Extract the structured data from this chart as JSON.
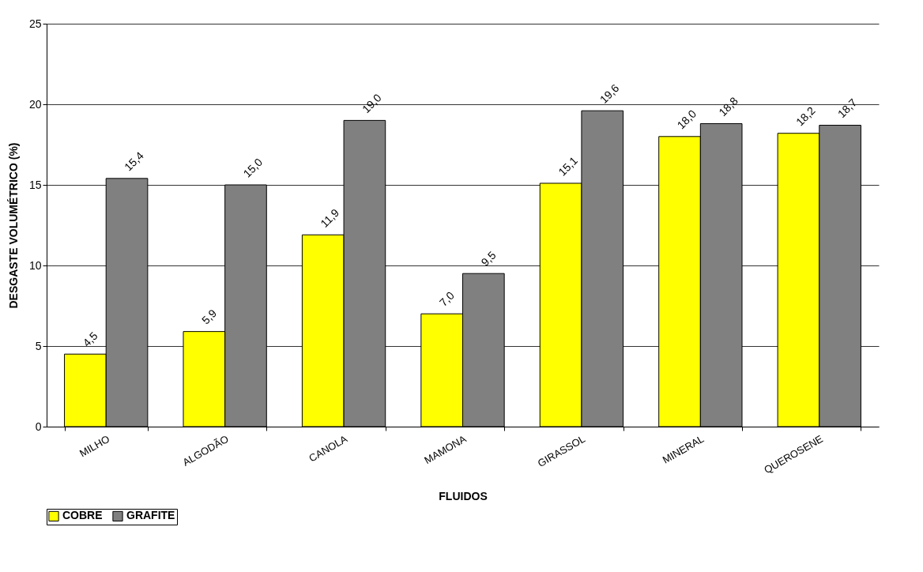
{
  "chart_data": {
    "type": "bar",
    "xlabel": "FLUIDOS",
    "ylabel": "DESGASTE VOLUMÉTRICO (%)",
    "categories": [
      "MILHO",
      "ALGODÃO",
      "CANOLA",
      "MAMONA",
      "GIRASSOL",
      "MINERAL",
      "QUEROSENE"
    ],
    "series": [
      {
        "name": "COBRE",
        "color": "#ffff00",
        "values": [
          4.5,
          5.9,
          11.9,
          7.0,
          15.1,
          18.0,
          18.2
        ],
        "value_labels": [
          "4,5",
          "5,9",
          "11,9",
          "7,0",
          "15,1",
          "18,0",
          "18,2"
        ]
      },
      {
        "name": "GRAFITE",
        "color": "#808080",
        "values": [
          15.4,
          15.0,
          19.0,
          9.5,
          19.6,
          18.8,
          18.7
        ],
        "value_labels": [
          "15,4",
          "15,0",
          "19,0",
          "9,5",
          "19,6",
          "18,8",
          "18,7"
        ]
      }
    ],
    "ylim": [
      0,
      25
    ],
    "yticks": [
      0,
      5,
      10,
      15,
      20,
      25
    ],
    "grid": "y",
    "legend": "bottom"
  }
}
